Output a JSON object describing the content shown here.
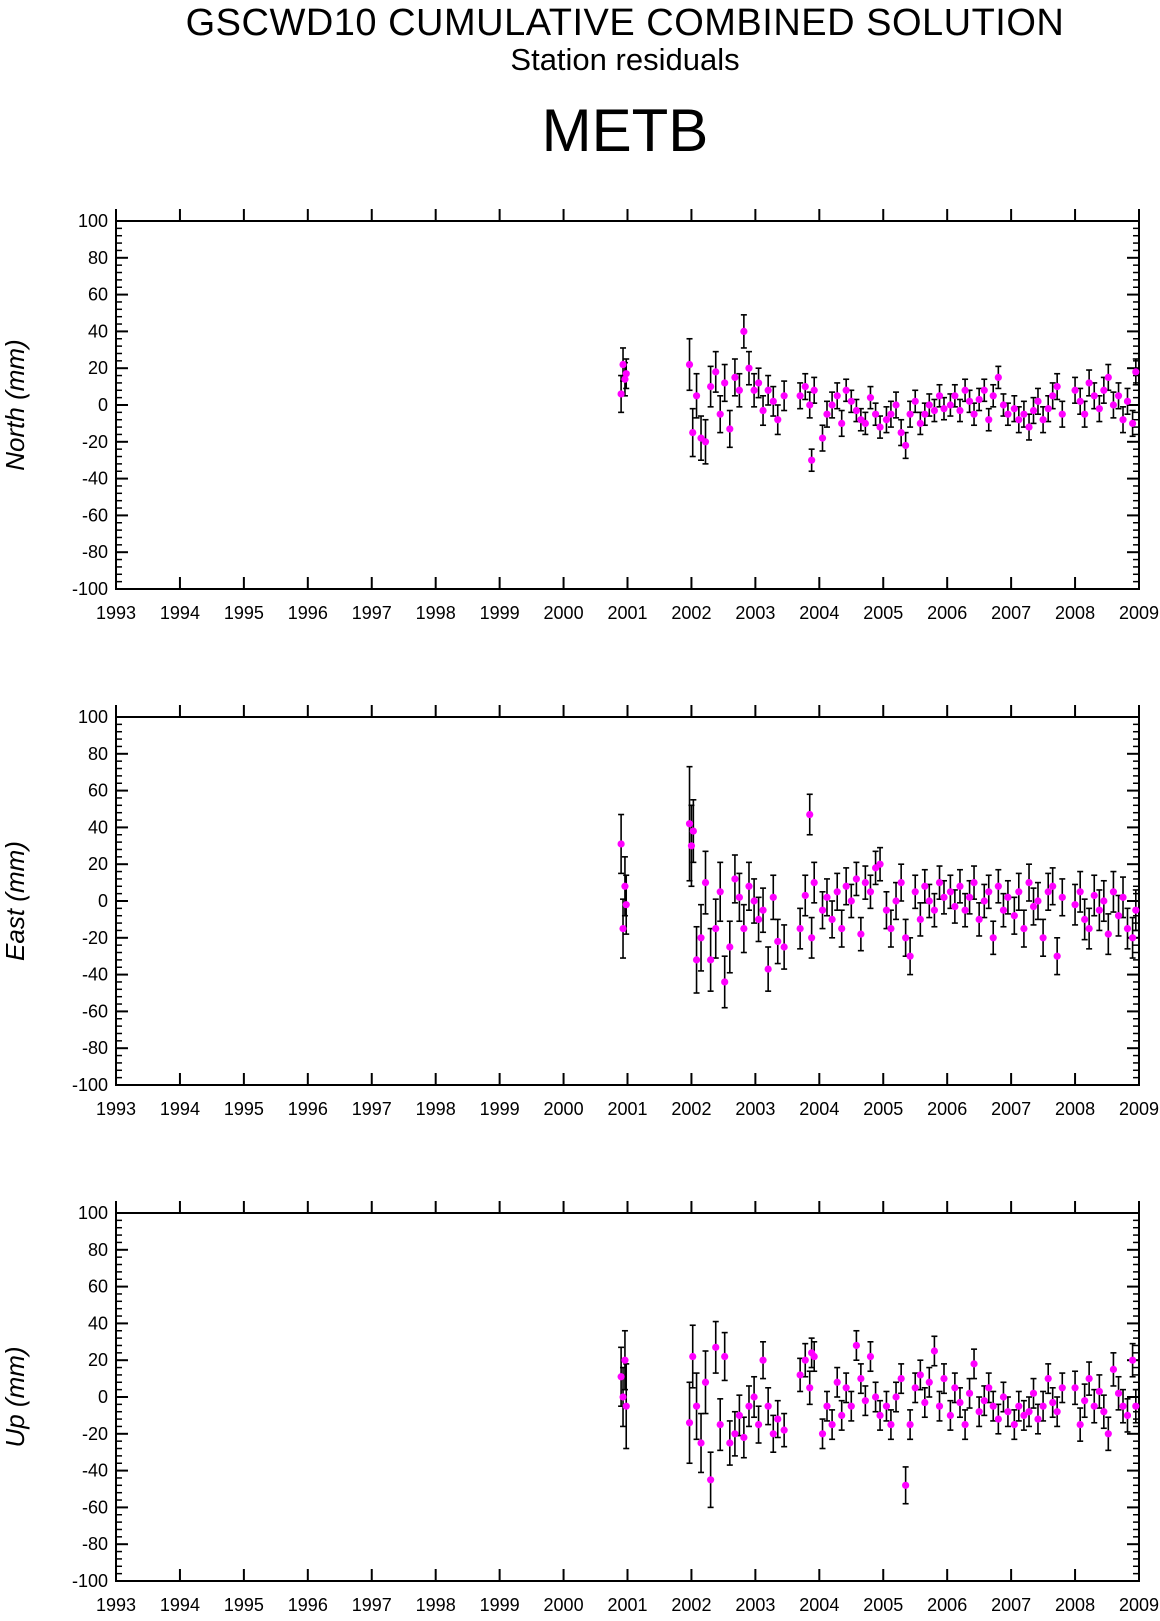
{
  "page": {
    "title": "GSCWD10 CUMULATIVE COMBINED SOLUTION",
    "subtitle": "Station residuals",
    "station": "METB"
  },
  "colors": {
    "marker": "#ff00ff",
    "errorbar": "#000000",
    "axis": "#000000",
    "background": "#ffffff"
  },
  "chart_data": [
    {
      "type": "scatter",
      "ylabel": "North (mm)",
      "xlim": [
        1993,
        2009
      ],
      "ylim": [
        -100,
        100
      ],
      "xticks": [
        "1993",
        "1994",
        "1995",
        "1996",
        "1997",
        "1998",
        "1999",
        "2000",
        "2001",
        "2002",
        "2003",
        "2004",
        "2005",
        "2006",
        "2007",
        "2008",
        "2009"
      ],
      "yticks": [
        "100",
        "80",
        "60",
        "40",
        "20",
        "0",
        "-20",
        "-40",
        "-60",
        "-80",
        "-100"
      ],
      "grid": false,
      "series": [
        {
          "x": [
            2000.9,
            2000.93,
            2000.96,
            2000.98,
            2001.97,
            2002.02,
            2002.08,
            2002.15,
            2002.22,
            2002.3,
            2002.38,
            2002.45,
            2002.52,
            2002.6,
            2002.68,
            2002.75,
            2002.82,
            2002.9,
            2002.98,
            2003.05,
            2003.12,
            2003.2,
            2003.28,
            2003.35,
            2003.45,
            2003.7,
            2003.78,
            2003.85,
            2003.88,
            2003.92,
            2004.05,
            2004.12,
            2004.2,
            2004.28,
            2004.35,
            2004.42,
            2004.5,
            2004.58,
            2004.65,
            2004.72,
            2004.8,
            2004.88,
            2004.95,
            2005.05,
            2005.12,
            2005.2,
            2005.28,
            2005.35,
            2005.42,
            2005.5,
            2005.58,
            2005.65,
            2005.72,
            2005.8,
            2005.88,
            2005.95,
            2006.05,
            2006.12,
            2006.2,
            2006.28,
            2006.35,
            2006.42,
            2006.5,
            2006.58,
            2006.65,
            2006.72,
            2006.8,
            2006.88,
            2006.95,
            2007.05,
            2007.12,
            2007.2,
            2007.28,
            2007.35,
            2007.42,
            2007.5,
            2007.58,
            2007.65,
            2007.72,
            2007.8,
            2008.0,
            2008.08,
            2008.15,
            2008.22,
            2008.3,
            2008.38,
            2008.45,
            2008.52,
            2008.6,
            2008.68,
            2008.75,
            2008.82,
            2008.9,
            2008.95
          ],
          "y": [
            6,
            22,
            14,
            17,
            22,
            -15,
            5,
            -18,
            -20,
            10,
            18,
            -5,
            12,
            -13,
            15,
            8,
            40,
            20,
            8,
            12,
            -3,
            8,
            2,
            -8,
            5,
            5,
            10,
            0,
            -30,
            8,
            -18,
            -5,
            0,
            5,
            -10,
            8,
            2,
            -3,
            -8,
            -10,
            4,
            -5,
            -12,
            -8,
            -5,
            0,
            -15,
            -22,
            -5,
            2,
            -10,
            -5,
            0,
            -3,
            5,
            -2,
            0,
            5,
            -3,
            8,
            2,
            -5,
            3,
            8,
            -8,
            5,
            15,
            0,
            -5,
            -2,
            -8,
            -5,
            -12,
            -3,
            2,
            -8,
            -2,
            5,
            10,
            -5,
            8,
            2,
            -5,
            12,
            5,
            -2,
            8,
            15,
            0,
            5,
            -8,
            2,
            -10,
            18
          ],
          "err": [
            10,
            9,
            9,
            8,
            14,
            13,
            12,
            12,
            12,
            11,
            11,
            10,
            10,
            10,
            10,
            9,
            9,
            9,
            9,
            8,
            8,
            8,
            8,
            8,
            8,
            7,
            7,
            7,
            6,
            7,
            7,
            7,
            7,
            7,
            7,
            6,
            6,
            6,
            6,
            6,
            6,
            6,
            6,
            7,
            7,
            7,
            7,
            7,
            7,
            6,
            6,
            6,
            6,
            6,
            6,
            6,
            6,
            6,
            6,
            6,
            6,
            6,
            6,
            6,
            6,
            6,
            6,
            6,
            6,
            7,
            7,
            7,
            7,
            7,
            7,
            7,
            7,
            7,
            7,
            7,
            7,
            7,
            7,
            7,
            7,
            7,
            7,
            7,
            7,
            7,
            7,
            7,
            7,
            7
          ]
        }
      ]
    },
    {
      "type": "scatter",
      "ylabel": "East (mm)",
      "xlim": [
        1993,
        2009
      ],
      "ylim": [
        -100,
        100
      ],
      "xticks": [
        "1993",
        "1994",
        "1995",
        "1996",
        "1997",
        "1998",
        "1999",
        "2000",
        "2001",
        "2002",
        "2003",
        "2004",
        "2005",
        "2006",
        "2007",
        "2008",
        "2009"
      ],
      "yticks": [
        "100",
        "80",
        "60",
        "40",
        "20",
        "0",
        "-20",
        "-40",
        "-60",
        "-80",
        "-100"
      ],
      "grid": false,
      "series": [
        {
          "x": [
            2000.9,
            2000.93,
            2000.96,
            2000.98,
            2001.97,
            2002.0,
            2002.03,
            2002.08,
            2002.15,
            2002.22,
            2002.3,
            2002.38,
            2002.45,
            2002.52,
            2002.6,
            2002.68,
            2002.75,
            2002.82,
            2002.9,
            2002.98,
            2003.05,
            2003.12,
            2003.2,
            2003.28,
            2003.35,
            2003.45,
            2003.7,
            2003.78,
            2003.85,
            2003.88,
            2003.92,
            2004.05,
            2004.12,
            2004.2,
            2004.28,
            2004.35,
            2004.42,
            2004.5,
            2004.58,
            2004.65,
            2004.72,
            2004.8,
            2004.88,
            2004.95,
            2005.05,
            2005.12,
            2005.2,
            2005.28,
            2005.35,
            2005.42,
            2005.5,
            2005.58,
            2005.65,
            2005.72,
            2005.8,
            2005.88,
            2005.95,
            2006.05,
            2006.12,
            2006.2,
            2006.28,
            2006.35,
            2006.42,
            2006.5,
            2006.58,
            2006.65,
            2006.72,
            2006.8,
            2006.88,
            2006.95,
            2007.05,
            2007.12,
            2007.2,
            2007.28,
            2007.35,
            2007.42,
            2007.5,
            2007.58,
            2007.65,
            2007.72,
            2007.8,
            2008.0,
            2008.08,
            2008.15,
            2008.22,
            2008.3,
            2008.38,
            2008.45,
            2008.52,
            2008.6,
            2008.68,
            2008.75,
            2008.82,
            2008.9,
            2008.95
          ],
          "y": [
            31,
            -15,
            8,
            -2,
            42,
            30,
            38,
            -32,
            -20,
            10,
            -32,
            -15,
            5,
            -44,
            -25,
            12,
            2,
            -15,
            8,
            0,
            -10,
            -5,
            -37,
            2,
            -22,
            -25,
            -15,
            3,
            47,
            -20,
            10,
            -5,
            2,
            -10,
            5,
            -15,
            8,
            0,
            12,
            -18,
            10,
            5,
            18,
            20,
            -5,
            -15,
            0,
            10,
            -20,
            -30,
            5,
            -10,
            8,
            0,
            -5,
            10,
            2,
            5,
            -3,
            8,
            -5,
            2,
            10,
            -10,
            0,
            5,
            -20,
            8,
            -5,
            2,
            -8,
            5,
            -15,
            10,
            -3,
            0,
            -20,
            5,
            8,
            -30,
            2,
            -2,
            5,
            -10,
            -15,
            3,
            -5,
            0,
            -18,
            5,
            -8,
            2,
            -15,
            -20,
            -5
          ],
          "err": [
            16,
            16,
            16,
            16,
            31,
            22,
            17,
            18,
            18,
            17,
            17,
            16,
            16,
            14,
            14,
            13,
            13,
            13,
            13,
            12,
            12,
            12,
            12,
            12,
            12,
            12,
            11,
            11,
            11,
            11,
            11,
            10,
            10,
            10,
            10,
            10,
            10,
            9,
            9,
            9,
            9,
            9,
            9,
            9,
            10,
            10,
            10,
            10,
            10,
            10,
            9,
            9,
            9,
            9,
            9,
            9,
            9,
            9,
            9,
            9,
            9,
            9,
            9,
            9,
            9,
            9,
            9,
            9,
            9,
            9,
            10,
            10,
            10,
            10,
            10,
            10,
            10,
            10,
            10,
            10,
            10,
            11,
            11,
            11,
            11,
            11,
            11,
            11,
            11,
            11,
            11,
            11,
            11,
            11,
            11
          ]
        }
      ]
    },
    {
      "type": "scatter",
      "ylabel": "Up (mm)",
      "xlim": [
        1993,
        2009
      ],
      "ylim": [
        -100,
        100
      ],
      "xticks": [
        "1993",
        "1994",
        "1995",
        "1996",
        "1997",
        "1998",
        "1999",
        "2000",
        "2001",
        "2002",
        "2003",
        "2004",
        "2005",
        "2006",
        "2007",
        "2008",
        "2009"
      ],
      "yticks": [
        "100",
        "80",
        "60",
        "40",
        "20",
        "0",
        "-20",
        "-40",
        "-60",
        "-80",
        "-100"
      ],
      "grid": false,
      "series": [
        {
          "x": [
            2000.9,
            2000.93,
            2000.96,
            2000.98,
            2001.97,
            2002.02,
            2002.08,
            2002.15,
            2002.22,
            2002.3,
            2002.38,
            2002.45,
            2002.52,
            2002.6,
            2002.68,
            2002.75,
            2002.82,
            2002.9,
            2002.98,
            2003.05,
            2003.12,
            2003.2,
            2003.28,
            2003.35,
            2003.45,
            2003.7,
            2003.78,
            2003.85,
            2003.88,
            2003.92,
            2004.05,
            2004.12,
            2004.2,
            2004.28,
            2004.35,
            2004.42,
            2004.5,
            2004.58,
            2004.65,
            2004.72,
            2004.8,
            2004.88,
            2004.95,
            2005.05,
            2005.12,
            2005.2,
            2005.28,
            2005.35,
            2005.42,
            2005.5,
            2005.58,
            2005.65,
            2005.72,
            2005.8,
            2005.88,
            2005.95,
            2006.05,
            2006.12,
            2006.2,
            2006.28,
            2006.35,
            2006.42,
            2006.5,
            2006.58,
            2006.65,
            2006.72,
            2006.8,
            2006.88,
            2006.95,
            2007.05,
            2007.12,
            2007.2,
            2007.28,
            2007.35,
            2007.42,
            2007.5,
            2007.58,
            2007.65,
            2007.72,
            2007.8,
            2008.0,
            2008.08,
            2008.15,
            2008.22,
            2008.3,
            2008.38,
            2008.45,
            2008.52,
            2008.6,
            2008.68,
            2008.75,
            2008.82,
            2008.9,
            2008.95
          ],
          "y": [
            11,
            0,
            20,
            -5,
            -14,
            22,
            -5,
            -25,
            8,
            -45,
            27,
            -15,
            22,
            -25,
            -20,
            -10,
            -22,
            -5,
            0,
            -15,
            20,
            -5,
            -20,
            -12,
            -18,
            12,
            20,
            5,
            24,
            22,
            -20,
            -5,
            -15,
            8,
            -10,
            5,
            -5,
            28,
            10,
            -2,
            22,
            0,
            -10,
            -5,
            -15,
            0,
            10,
            -48,
            -15,
            5,
            12,
            -3,
            8,
            25,
            -5,
            10,
            -10,
            5,
            -3,
            -15,
            2,
            18,
            -8,
            -2,
            5,
            -5,
            -12,
            0,
            -8,
            -15,
            -5,
            -10,
            -8,
            2,
            -12,
            -5,
            10,
            -3,
            -8,
            5,
            5,
            -15,
            -2,
            10,
            -5,
            3,
            -8,
            -20,
            15,
            2,
            -5,
            -10,
            20,
            -5
          ],
          "err": [
            16,
            16,
            16,
            23,
            22,
            17,
            18,
            16,
            17,
            15,
            14,
            14,
            13,
            12,
            12,
            11,
            11,
            11,
            11,
            10,
            10,
            10,
            10,
            10,
            9,
            9,
            9,
            9,
            8,
            8,
            8,
            8,
            8,
            8,
            8,
            8,
            8,
            8,
            8,
            8,
            8,
            8,
            8,
            8,
            8,
            8,
            8,
            10,
            8,
            8,
            8,
            8,
            8,
            8,
            8,
            8,
            8,
            8,
            8,
            8,
            8,
            8,
            8,
            8,
            8,
            8,
            8,
            8,
            8,
            8,
            8,
            8,
            8,
            8,
            8,
            8,
            8,
            8,
            8,
            8,
            9,
            9,
            9,
            9,
            9,
            9,
            9,
            9,
            9,
            9,
            9,
            9,
            9,
            9
          ]
        }
      ]
    }
  ]
}
